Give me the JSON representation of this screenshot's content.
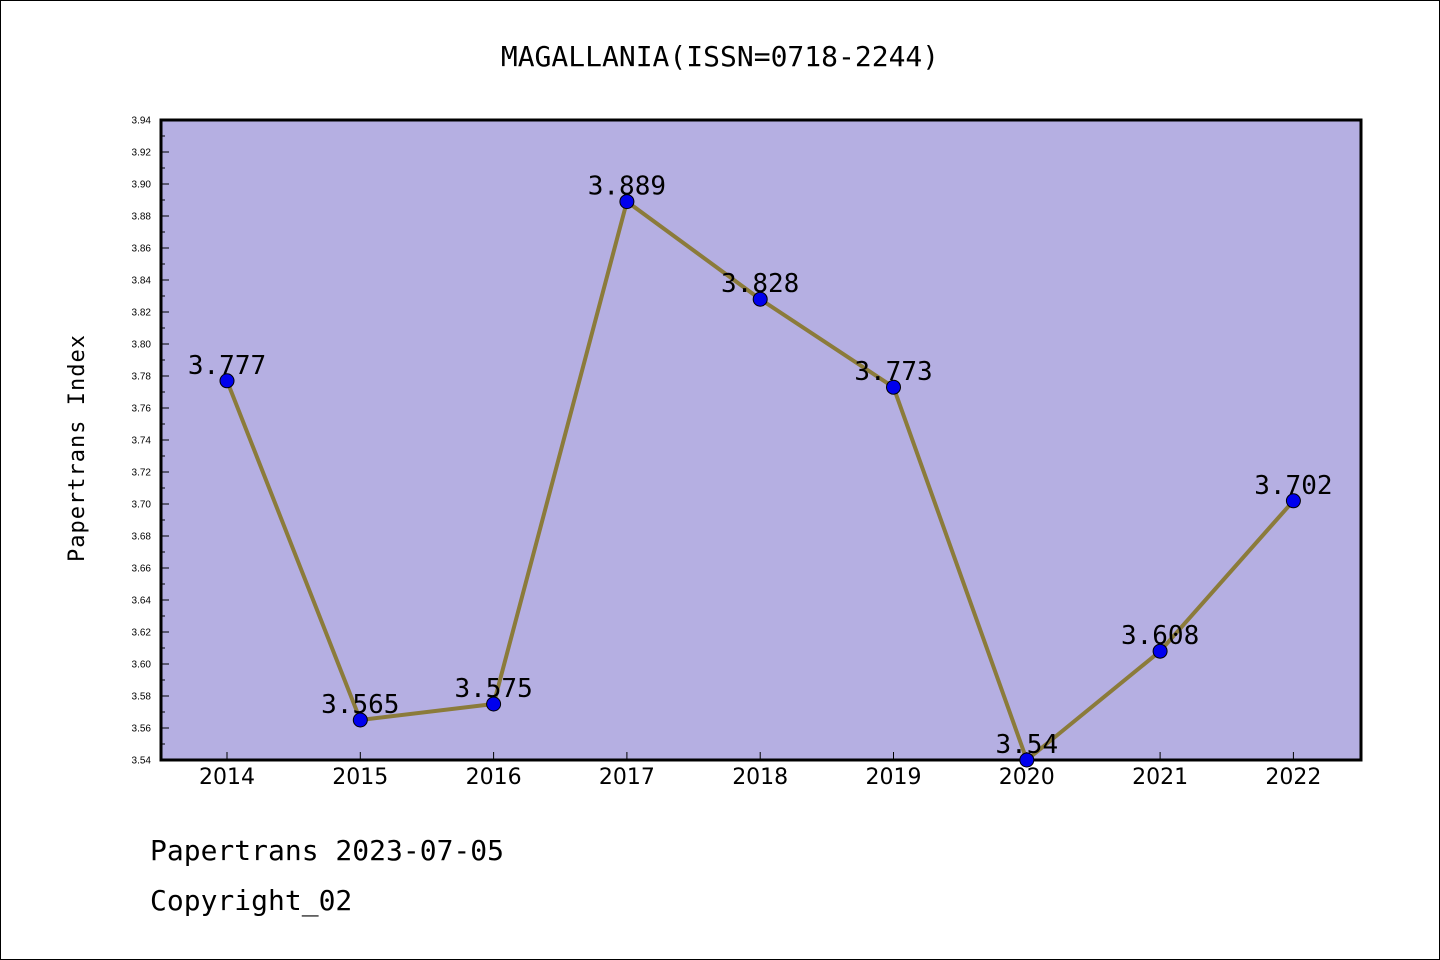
{
  "chart_data": {
    "type": "line",
    "title": "MAGALLANIA(ISSN=0718-2244)",
    "ylabel": "Papertrans Index",
    "xlabel": "",
    "categories": [
      "2014",
      "2015",
      "2016",
      "2017",
      "2018",
      "2019",
      "2020",
      "2021",
      "2022"
    ],
    "values": [
      3.777,
      3.565,
      3.575,
      3.889,
      3.828,
      3.773,
      3.54,
      3.608,
      3.702
    ],
    "data_labels": [
      "3.777",
      "3.565",
      "3.575",
      "3.889",
      "3.828",
      "3.773",
      "3.54",
      "3.608",
      "3.702"
    ],
    "ylim": [
      3.54,
      3.94
    ],
    "yticks": [
      "3.54",
      "3.56",
      "3.58",
      "3.60",
      "3.62",
      "3.64",
      "3.66",
      "3.68",
      "3.70",
      "3.72",
      "3.74",
      "3.76",
      "3.78",
      "3.80",
      "3.82",
      "3.84",
      "3.86",
      "3.88",
      "3.90",
      "3.92",
      "3.94"
    ],
    "grid": false,
    "colors": {
      "plot_background": "#b5afe2",
      "line": "#8b7b3a",
      "marker": "#0000ee"
    }
  },
  "footer": {
    "line1": "Papertrans 2023-07-05",
    "line2": "Copyright_02"
  }
}
